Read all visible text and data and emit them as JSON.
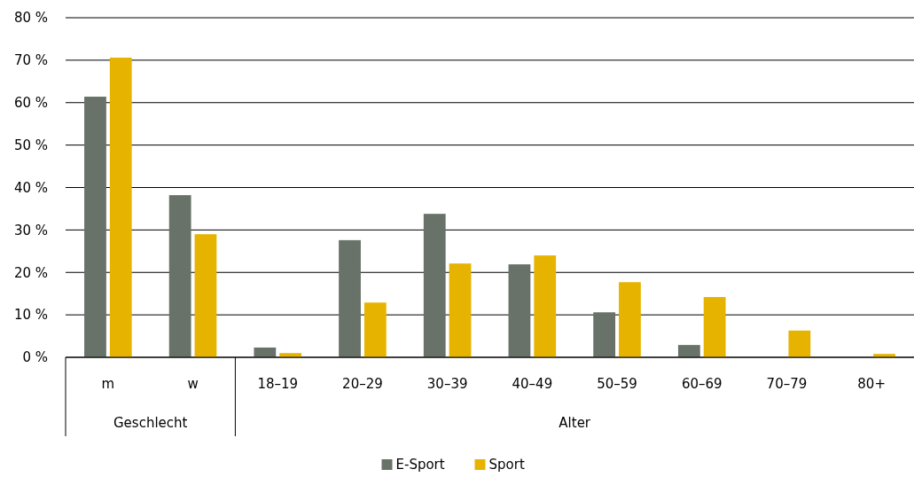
{
  "chart_data": {
    "type": "bar",
    "categories": [
      "m",
      "w",
      "18–19",
      "20–29",
      "30–39",
      "40–49",
      "50–59",
      "60–69",
      "70–79",
      "80+"
    ],
    "series": [
      {
        "name": "E-Sport",
        "color": "#687268",
        "values": [
          61.4,
          38.2,
          2.3,
          27.6,
          33.8,
          21.9,
          10.6,
          2.9,
          0,
          0
        ]
      },
      {
        "name": "Sport",
        "color": "#e6b400",
        "values": [
          70.6,
          29.0,
          1.0,
          12.9,
          22.1,
          24.0,
          17.7,
          14.2,
          6.3,
          0.8
        ]
      }
    ],
    "ylim": [
      0,
      80
    ],
    "yticks": [
      {
        "value": 0,
        "label": "0 %"
      },
      {
        "value": 10,
        "label": "10 %"
      },
      {
        "value": 20,
        "label": "20 %"
      },
      {
        "value": 30,
        "label": "30 %"
      },
      {
        "value": 40,
        "label": "40 %"
      },
      {
        "value": 50,
        "label": "50 %"
      },
      {
        "value": 60,
        "label": "60 %"
      },
      {
        "value": 70,
        "label": "70 %"
      },
      {
        "value": 80,
        "label": "80 %"
      }
    ],
    "grid": "y",
    "legend": "bottom",
    "annotations": [
      "Geschlecht",
      "Alter"
    ]
  }
}
